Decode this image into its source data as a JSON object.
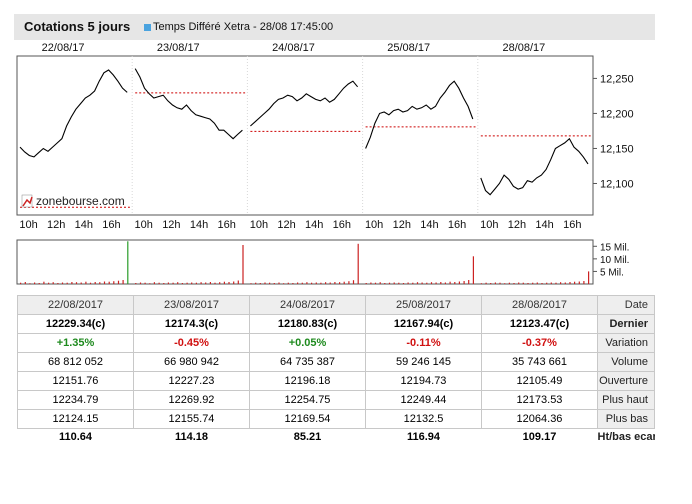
{
  "header": {
    "title": "Cotations 5 jours",
    "subtitle": "Temps Différé Xetra - 28/08 17:45:00"
  },
  "colors": {
    "price_line": "#000000",
    "close_ref": "#cc0000",
    "volume_main": "#2a9d2a",
    "volume_other": "#cc2222",
    "header_bg": "#e6e6e6",
    "positive": "#1e8a1e",
    "negative": "#d01010"
  },
  "logo": {
    "text": "zonebourse.com",
    "icon": "zonebourse-logo-icon"
  },
  "chart_data": {
    "type": "line",
    "day_labels": [
      "22/08/17",
      "23/08/17",
      "24/08/17",
      "25/08/17",
      "28/08/17"
    ],
    "hour_labels": [
      "10h",
      "12h",
      "14h",
      "16h"
    ],
    "y_ticks": [
      12100,
      12150,
      12200,
      12250
    ],
    "ylim": [
      12055,
      12282
    ],
    "volume_ticks": [
      "15 Mil.",
      "10 Mil.",
      "5 Mil."
    ],
    "previous_close_refs": [
      12066,
      12229.34,
      12174.3,
      12180.83,
      12167.94
    ],
    "series": [
      {
        "values": [
          12152,
          12145,
          12140,
          12138,
          12144,
          12150,
          12146,
          12152,
          12158,
          12164,
          12182,
          12195,
          12206,
          12214,
          12222,
          12226,
          12232,
          12246,
          12258,
          12262,
          12255,
          12246,
          12236,
          12230
        ]
      },
      {
        "values": [
          12264,
          12252,
          12236,
          12228,
          12222,
          12224,
          12226,
          12218,
          12212,
          12208,
          12206,
          12212,
          12204,
          12198,
          12196,
          12194,
          12192,
          12186,
          12176,
          12176,
          12170,
          12164,
          12170,
          12176
        ]
      },
      {
        "values": [
          12182,
          12188,
          12194,
          12200,
          12206,
          12214,
          12220,
          12222,
          12226,
          12224,
          12218,
          12222,
          12228,
          12224,
          12220,
          12218,
          12222,
          12216,
          12220,
          12228,
          12236,
          12242,
          12246,
          12238
        ]
      },
      {
        "values": [
          12150,
          12166,
          12186,
          12200,
          12202,
          12198,
          12204,
          12206,
          12202,
          12204,
          12210,
          12206,
          12208,
          12212,
          12206,
          12210,
          12222,
          12230,
          12240,
          12246,
          12236,
          12222,
          12210,
          12192
        ]
      },
      {
        "values": [
          12108,
          12090,
          12084,
          12092,
          12100,
          12112,
          12106,
          12096,
          12092,
          12094,
          12104,
          12102,
          12108,
          12112,
          12120,
          12134,
          12150,
          12154,
          12158,
          12164,
          12152,
          12146,
          12138,
          12128
        ]
      }
    ],
    "volume_series": [
      {
        "values": [
          0.5,
          0.8,
          0.3,
          0.6,
          0.4,
          0.9,
          0.5,
          0.7,
          0.4,
          0.6,
          0.5,
          0.8,
          0.7,
          0.6,
          0.9,
          0.5,
          0.8,
          0.7,
          1.0,
          0.9,
          1.1,
          1.3,
          1.6,
          17.0
        ]
      },
      {
        "values": [
          0.4,
          0.6,
          0.5,
          0.3,
          0.7,
          0.5,
          0.4,
          0.6,
          0.5,
          0.7,
          0.4,
          0.5,
          0.6,
          0.5,
          0.7,
          0.6,
          0.8,
          0.5,
          0.7,
          0.9,
          0.8,
          1.0,
          1.4,
          15.5
        ]
      },
      {
        "values": [
          0.3,
          0.5,
          0.4,
          0.6,
          0.5,
          0.4,
          0.6,
          0.3,
          0.5,
          0.4,
          0.6,
          0.5,
          0.7,
          0.5,
          0.6,
          0.5,
          0.7,
          0.6,
          0.8,
          0.7,
          0.9,
          1.1,
          1.5,
          16.0
        ]
      },
      {
        "values": [
          0.4,
          0.6,
          0.5,
          0.7,
          0.4,
          0.5,
          0.6,
          0.5,
          0.4,
          0.6,
          0.5,
          0.7,
          0.6,
          0.5,
          0.7,
          0.6,
          0.8,
          0.6,
          0.9,
          0.8,
          1.0,
          1.2,
          1.6,
          11.0
        ]
      },
      {
        "values": [
          0.3,
          0.5,
          0.4,
          0.6,
          0.5,
          0.3,
          0.5,
          0.4,
          0.6,
          0.5,
          0.4,
          0.5,
          0.6,
          0.4,
          0.5,
          0.6,
          0.5,
          0.7,
          0.6,
          0.8,
          0.9,
          1.0,
          1.2,
          5.0
        ]
      }
    ]
  },
  "table": {
    "dates": [
      "22/08/2017",
      "23/08/2017",
      "24/08/2017",
      "25/08/2017",
      "28/08/2017"
    ],
    "rows": [
      {
        "label": "Dernier",
        "values": [
          "12229.34(c)",
          "12174.3(c)",
          "12180.83(c)",
          "12167.94(c)",
          "12123.47(c)"
        ]
      },
      {
        "label": "Variation",
        "values": [
          "+1.35%",
          "-0.45%",
          "+0.05%",
          "-0.11%",
          "-0.37%"
        ]
      },
      {
        "label": "Volume",
        "values": [
          "68 812 052",
          "66 980 942",
          "64 735 387",
          "59 246 145",
          "35 743 661"
        ]
      },
      {
        "label": "Ouverture",
        "values": [
          "12151.76",
          "12227.23",
          "12196.18",
          "12194.73",
          "12105.49"
        ]
      },
      {
        "label": "Plus haut",
        "values": [
          "12234.79",
          "12269.92",
          "12254.75",
          "12249.44",
          "12173.53"
        ]
      },
      {
        "label": "Plus bas",
        "values": [
          "12124.15",
          "12155.74",
          "12169.54",
          "12132.5",
          "12064.36"
        ]
      },
      {
        "label": "Ht/bas ecart",
        "values": [
          "110.64",
          "114.18",
          "85.21",
          "116.94",
          "109.17"
        ]
      }
    ],
    "date_header": "Date"
  }
}
